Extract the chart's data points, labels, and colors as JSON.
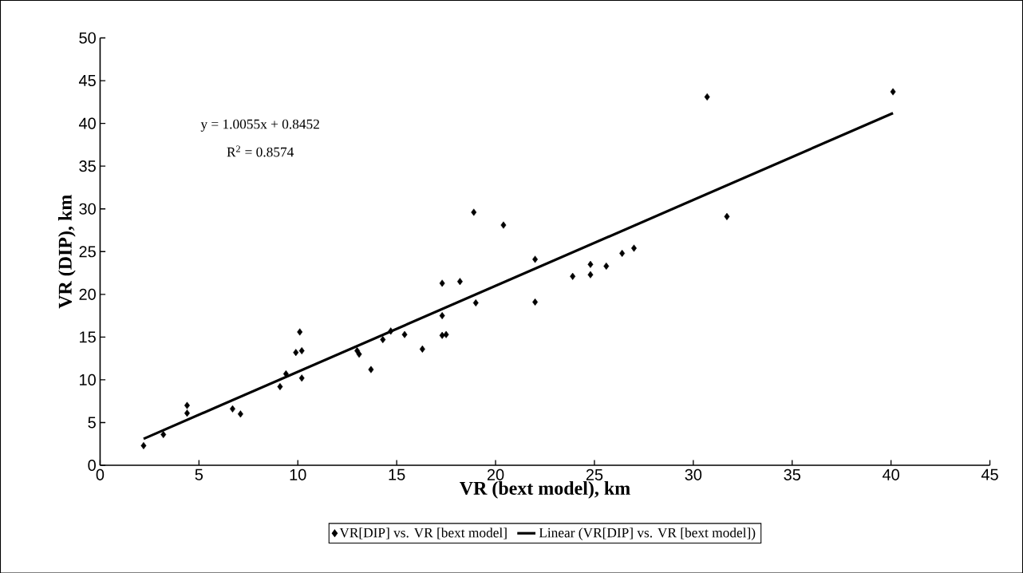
{
  "chart_data": {
    "type": "scatter",
    "xlabel": "VR (bext model), km",
    "ylabel": "VR (DIP), km",
    "annotations": [
      "y = 1.0055x + 0.8452",
      "R$^{2}$ = 0.8574"
    ],
    "xlim": [
      0,
      45
    ],
    "ylim": [
      0,
      50
    ],
    "xticks": [
      0,
      5,
      10,
      15,
      20,
      25,
      30,
      35,
      40,
      45
    ],
    "yticks": [
      0,
      5,
      10,
      15,
      20,
      25,
      30,
      35,
      40,
      45,
      50
    ],
    "grid": false,
    "legend": "bottom",
    "series": [
      {
        "name": "VR[DIP] vs. VR [bext model]",
        "marker": "diamond",
        "color": "#000000",
        "x": [
          2.2,
          3.2,
          4.4,
          4.4,
          6.7,
          7.1,
          9.1,
          9.4,
          9.9,
          10.2,
          10.1,
          10.2,
          13.0,
          13.1,
          13.7,
          14.3,
          14.7,
          15.4,
          16.3,
          17.3,
          18.2,
          17.3,
          17.3,
          17.5,
          18.9,
          19.0,
          20.4,
          22.0,
          22.0,
          23.9,
          24.8,
          24.8,
          25.6,
          26.4,
          27.0,
          30.7,
          31.7,
          40.1
        ],
        "values": [
          2.3,
          3.6,
          7.0,
          6.1,
          6.6,
          6.0,
          9.2,
          10.7,
          13.2,
          13.4,
          15.6,
          10.2,
          13.4,
          13.0,
          11.2,
          14.7,
          15.7,
          15.3,
          13.6,
          21.3,
          21.5,
          17.5,
          15.2,
          15.3,
          29.6,
          19.0,
          28.1,
          24.1,
          19.1,
          22.1,
          23.5,
          22.3,
          23.3,
          24.8,
          25.4,
          43.1,
          29.1,
          43.7
        ]
      },
      {
        "name": "Linear (VR[DIP] vs. VR [bext model])",
        "type": "line",
        "marker": "none",
        "color": "#000000",
        "x": [
          2.2,
          40.1
        ],
        "values": [
          3.1,
          41.2
        ]
      }
    ]
  }
}
